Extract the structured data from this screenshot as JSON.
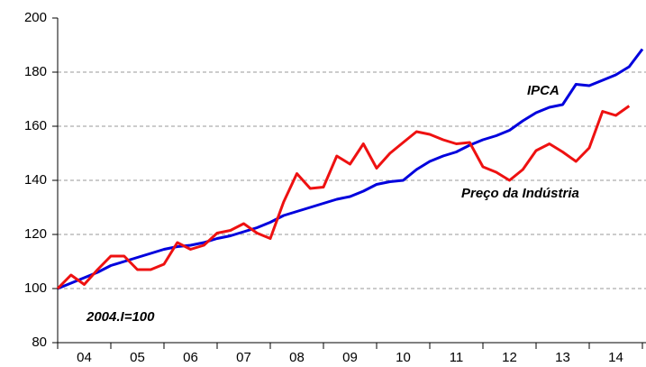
{
  "chart_data": {
    "type": "line",
    "annotations": [
      "IPCA",
      "Preço da Indústria",
      "2004.I=100"
    ],
    "x": [
      2004,
      2004.25,
      2004.5,
      2004.75,
      2005,
      2005.25,
      2005.5,
      2005.75,
      2006,
      2006.25,
      2006.5,
      2006.75,
      2007,
      2007.25,
      2007.5,
      2007.75,
      2008,
      2008.25,
      2008.5,
      2008.75,
      2009,
      2009.25,
      2009.5,
      2009.75,
      2010,
      2010.25,
      2010.5,
      2010.75,
      2011,
      2011.25,
      2011.5,
      2011.75,
      2012,
      2012.25,
      2012.5,
      2012.75,
      2013,
      2013.25,
      2013.5,
      2013.75,
      2014,
      2014.25,
      2014.5,
      2014.75,
      2015
    ],
    "series": [
      {
        "name": "IPCA",
        "color": "#0000dd",
        "values": [
          100,
          102,
          104,
          106,
          108.5,
          110,
          111.5,
          113,
          114.5,
          115.5,
          116,
          117,
          118.5,
          119.5,
          121,
          122.5,
          124.5,
          127,
          128.5,
          130,
          131.5,
          133,
          134,
          136,
          138.5,
          139.5,
          140,
          144,
          147,
          149,
          150.5,
          153,
          155,
          156.5,
          158.5,
          162,
          165,
          167,
          168,
          175.5,
          175,
          177,
          179,
          182,
          188.5
        ]
      },
      {
        "name": "Preço da Indústria",
        "color": "#ee1111",
        "values": [
          100,
          105,
          101.5,
          107,
          112,
          112,
          107,
          107,
          109,
          117,
          114.5,
          116,
          120.5,
          121.5,
          124,
          120.5,
          118.5,
          132,
          142.5,
          137,
          137.5,
          149,
          146,
          153.5,
          144.5,
          150,
          154,
          158,
          157,
          155,
          153.5,
          154,
          145,
          143,
          140,
          144,
          151,
          153.5,
          150.5,
          147,
          152,
          165.5,
          164,
          167.5,
          null
        ]
      }
    ],
    "xlim": [
      2004,
      2015
    ],
    "xticks": [
      {
        "value": 2004.5,
        "label": "04"
      },
      {
        "value": 2005.5,
        "label": "05"
      },
      {
        "value": 2006.5,
        "label": "06"
      },
      {
        "value": 2007.5,
        "label": "07"
      },
      {
        "value": 2008.5,
        "label": "08"
      },
      {
        "value": 2009.5,
        "label": "09"
      },
      {
        "value": 2010.5,
        "label": "10"
      },
      {
        "value": 2011.5,
        "label": "11"
      },
      {
        "value": 2012.5,
        "label": "12"
      },
      {
        "value": 2013.5,
        "label": "13"
      },
      {
        "value": 2014.5,
        "label": "14"
      }
    ],
    "ylim": [
      80,
      200
    ],
    "yticks": [
      80,
      100,
      120,
      140,
      160,
      180,
      200
    ],
    "grid": true
  }
}
